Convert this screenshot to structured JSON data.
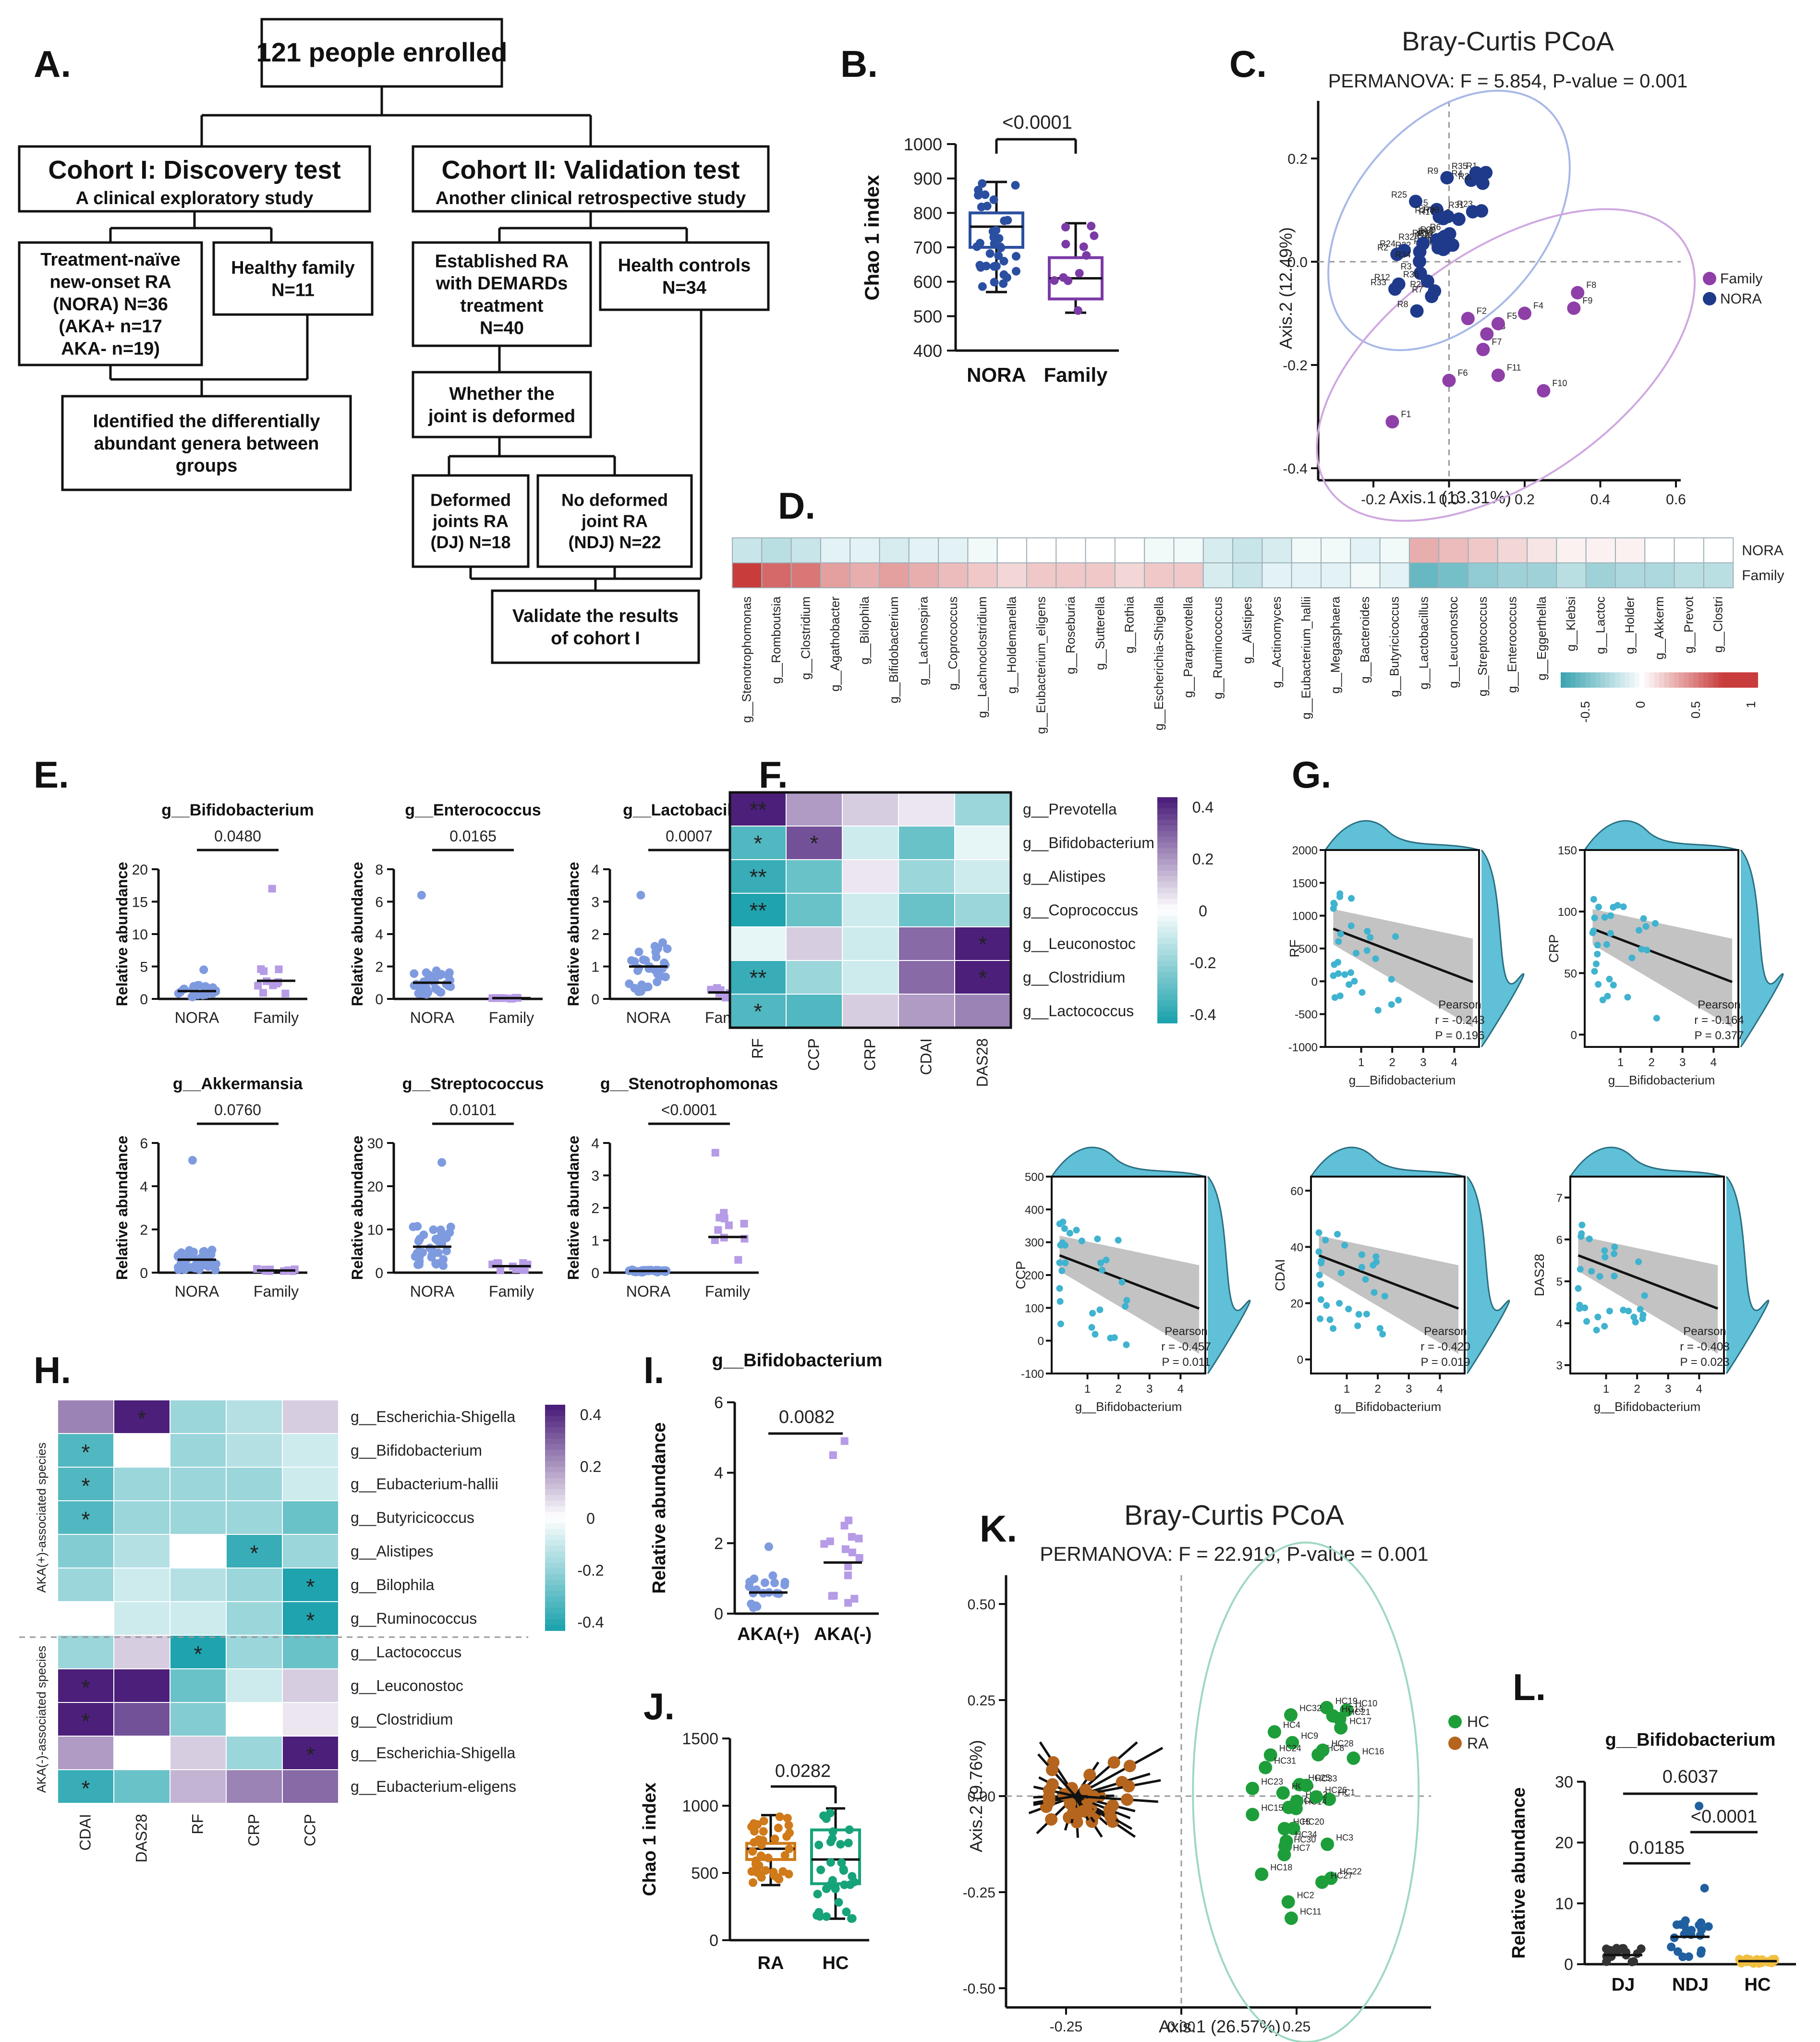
{
  "panel_labels": {
    "a": "A.",
    "b": "B.",
    "c": "C.",
    "d": "D.",
    "e": "E.",
    "f": "F.",
    "g": "G.",
    "h": "H.",
    "i": "I.",
    "j": "J.",
    "k": "K.",
    "l": "L."
  },
  "flowchart": {
    "top": "121 people enrolled",
    "cohort1_title": "Cohort I:  Discovery test",
    "cohort1_sub": "A clinical exploratory study",
    "cohort2_title": "Cohort II:  Validation test",
    "cohort2_sub": "Another clinical retrospective study",
    "nora_lines": [
      "Treatment-naïve",
      "new-onset RA",
      "(NORA)    N=36",
      "(AKA+    n=17",
      "AKA-    n=19)"
    ],
    "family_lines": [
      "Healthy family",
      "N=11"
    ],
    "established_lines": [
      "Established RA",
      "with DEMARDs",
      "treatment",
      "N=40"
    ],
    "health_lines": [
      "Health controls",
      "N=34"
    ],
    "identified_lines": [
      "Identified  the differentially",
      "abundant genera between",
      "groups"
    ],
    "deformed_q_lines": [
      "Whether the",
      "joint is deformed"
    ],
    "dj_lines": [
      "Deformed",
      "joints RA",
      "(DJ) N=18"
    ],
    "ndj_lines": [
      "No deformed",
      "joint RA",
      "(NDJ) N=22"
    ],
    "validate_lines": [
      "Validate  the results",
      "of cohort I"
    ]
  },
  "panel_b": {
    "ylabel": "Chao 1 index",
    "yticks": [
      "400",
      "500",
      "600",
      "700",
      "800",
      "900",
      "1000"
    ],
    "groups": [
      "NORA",
      "Family"
    ],
    "pvalue": "<0.0001",
    "colors": [
      "#2b4fa0",
      "#7b3aa6"
    ]
  },
  "panel_c": {
    "title": "Bray-Curtis PCoA",
    "subtitle": "PERMANOVA: F = 5.854, P-value = 0.001",
    "xlabel": "Axis.1 (13.31%)",
    "ylabel": "Axis.2 (12.49%)",
    "xticks": [
      "-0.2",
      "0.0",
      "0.2",
      "0.4",
      "0.6"
    ],
    "yticks": [
      "0.2",
      "0.0",
      "-0.2",
      "-0.4"
    ],
    "legend": [
      "Family",
      "NORA"
    ],
    "colors": {
      "family": "#8e3fa8",
      "nora": "#1f3a8a"
    }
  },
  "panel_d": {
    "rows": [
      "NORA",
      "Family"
    ],
    "genera": [
      "g__Stenotrophomonas",
      "g__Romboutsia",
      "g__Clostridium",
      "g__Agathobacter",
      "g__Bilophila",
      "g__Bifidobacterium",
      "g__Lachnospira",
      "g__Coprococcus",
      "g__Lachnoclostridium",
      "g__Holdemanella",
      "g__Eubacterium_eligens",
      "g__Roseburia",
      "g__Sutterella",
      "g__Rothia",
      "g__Escherichia-Shigella",
      "g__Paraprevotella",
      "g__Ruminococcus",
      "g__Alistipes",
      "g__Actinomyces",
      "g__Eubacterium_hallii",
      "g__Megasphaera",
      "g__Bacteroides",
      "g__Butyricicoccus",
      "g__Lactobacillus",
      "g__Leuconostoc",
      "g__Streptococcus",
      "g__Enterococcus",
      "g__Eggerthella",
      "g__Klebsi",
      "g__Lactoc",
      "g__Holder",
      "g__Akkerm",
      "g__Prevot",
      "g__Clostri"
    ],
    "nora_values": [
      -0.2,
      -0.25,
      -0.2,
      -0.1,
      -0.1,
      -0.15,
      -0.1,
      -0.1,
      -0.05,
      0,
      0,
      0,
      0,
      0,
      -0.05,
      -0.05,
      -0.15,
      -0.2,
      -0.15,
      -0.05,
      -0.05,
      -0.1,
      -0.05,
      0.3,
      0.25,
      0.2,
      0.15,
      0.1,
      0.05,
      0.05,
      0.05,
      0,
      0,
      0
    ],
    "family_values": [
      0.9,
      0.55,
      0.5,
      0.35,
      0.3,
      0.35,
      0.3,
      0.25,
      0.2,
      0.15,
      0.2,
      0.2,
      0.2,
      0.15,
      0.2,
      0.2,
      -0.15,
      -0.2,
      -0.1,
      -0.1,
      -0.1,
      -0.05,
      -0.1,
      -0.55,
      -0.5,
      -0.4,
      -0.35,
      -0.35,
      -0.25,
      -0.35,
      -0.3,
      -0.3,
      -0.25,
      -0.25
    ],
    "scale_ticks": [
      "-0.5",
      "0",
      "0.5",
      "1"
    ]
  },
  "panel_e": {
    "ylabel": "Relative abundance",
    "groups": [
      "NORA",
      "Family"
    ],
    "plots": [
      {
        "title": "g__Bifidobacterium",
        "pvalue": "0.0480",
        "yticks": [
          "0",
          "5",
          "10",
          "15",
          "20"
        ],
        "ymax": 20
      },
      {
        "title": "g__Enterococcus",
        "pvalue": "0.0165",
        "yticks": [
          "0",
          "2",
          "4",
          "6",
          "8"
        ],
        "ymax": 8
      },
      {
        "title": "g__Lactobacillus",
        "pvalue": "0.0007",
        "yticks": [
          "0",
          "1",
          "2",
          "3",
          "4"
        ],
        "ymax": 4
      },
      {
        "title": "g__Akkermansia",
        "pvalue": "0.0760",
        "yticks": [
          "0",
          "2",
          "4",
          "6"
        ],
        "ymax": 6
      },
      {
        "title": "g__Streptococcus",
        "pvalue": "0.0101",
        "yticks": [
          "0",
          "10",
          "20",
          "30"
        ],
        "ymax": 30
      },
      {
        "title": "g__Stenotrophomonas",
        "pvalue": "<0.0001",
        "yticks": [
          "0",
          "1",
          "2",
          "3",
          "4"
        ],
        "ymax": 4
      }
    ]
  },
  "panel_f": {
    "cols": [
      "RF",
      "CCP",
      "CRP",
      "CDAI",
      "DAS28"
    ],
    "rows": [
      "g__Prevotella",
      "g__Bifidobacterium",
      "g__Alistipes",
      "g__Coprococcus",
      "g__Leuconostoc",
      "g__Clostridium",
      "g__Lactococcus"
    ],
    "values": [
      [
        0.45,
        0.2,
        0.1,
        0.05,
        -0.2
      ],
      [
        -0.35,
        0.35,
        -0.1,
        -0.3,
        -0.05
      ],
      [
        -0.4,
        -0.3,
        0.05,
        -0.2,
        -0.1
      ],
      [
        -0.45,
        -0.3,
        -0.1,
        -0.3,
        -0.2
      ],
      [
        -0.05,
        0.1,
        -0.1,
        0.3,
        0.45
      ],
      [
        -0.4,
        -0.2,
        -0.1,
        0.3,
        0.45
      ],
      [
        -0.35,
        -0.35,
        0.1,
        0.2,
        0.25
      ]
    ],
    "stars": [
      [
        "**",
        "",
        "",
        "",
        ""
      ],
      [
        "*",
        "*",
        "",
        "",
        ""
      ],
      [
        "**",
        "",
        "",
        "",
        ""
      ],
      [
        "**",
        "",
        "",
        "",
        ""
      ],
      [
        "",
        "",
        "",
        "",
        "*"
      ],
      [
        "**",
        "",
        "",
        "",
        "*"
      ],
      [
        "*",
        "",
        "",
        "",
        ""
      ]
    ],
    "scale_ticks": [
      "0.4",
      "0.2",
      "0",
      "-0.2",
      "-0.4"
    ]
  },
  "panel_g": {
    "xlabel": "g__Bifidobacterium",
    "plots": [
      {
        "ylabel": "RF",
        "yticks": [
          "2000",
          "1500",
          "1000",
          "500",
          "0",
          "-500",
          "-1000"
        ],
        "stat": "Pearson",
        "r": "r = -0.243",
        "p": "P = 0.196"
      },
      {
        "ylabel": "CRP",
        "yticks": [
          "150",
          "100",
          "50",
          "0"
        ],
        "stat": "Pearson",
        "r": "r = -0.164",
        "p": "P = 0.377"
      },
      {
        "ylabel": "CCP",
        "yticks": [
          "500",
          "400",
          "300",
          "200",
          "100",
          "0",
          "-100"
        ],
        "stat": "Pearson",
        "r": "r = -0.457",
        "p": "P = 0.011"
      },
      {
        "ylabel": "CDAI",
        "yticks": [
          "60",
          "40",
          "20",
          "0"
        ],
        "stat": "Pearson",
        "r": "r = -0.420",
        "p": "P = 0.019"
      },
      {
        "ylabel": "DAS28",
        "yticks": [
          "7",
          "6",
          "5",
          "4",
          "3"
        ],
        "stat": "Pearson",
        "r": "r = -0.408",
        "p": "P = 0.023"
      }
    ],
    "xticks": [
      "1",
      "2",
      "3",
      "4"
    ]
  },
  "panel_h": {
    "cols": [
      "CDAI",
      "DAS28",
      "RF",
      "CRP",
      "CCP"
    ],
    "rows": [
      "g__Escherichia-Shigella",
      "g__Bifidobacterium",
      "g__Eubacterium-hallii",
      "g__Butyricicoccus",
      "g__Alistipes",
      "g__Bilophila",
      "g__Ruminococcus",
      "g__Lactococcus",
      "g__Leuconostoc",
      "g__Clostridium",
      "g__Escherichia-Shigella",
      "g__Eubacterium-eligens"
    ],
    "values": [
      [
        0.25,
        0.45,
        -0.2,
        -0.15,
        0.1
      ],
      [
        -0.35,
        0,
        -0.2,
        -0.15,
        -0.1
      ],
      [
        -0.35,
        -0.2,
        -0.2,
        -0.2,
        -0.1
      ],
      [
        -0.35,
        -0.2,
        -0.2,
        -0.2,
        -0.3
      ],
      [
        -0.25,
        -0.15,
        0,
        -0.4,
        -0.2
      ],
      [
        -0.2,
        -0.1,
        -0.15,
        -0.2,
        -0.45
      ],
      [
        0,
        -0.1,
        -0.1,
        -0.2,
        -0.45
      ],
      [
        -0.2,
        0.1,
        -0.45,
        -0.2,
        -0.3
      ],
      [
        0.45,
        0.45,
        -0.3,
        -0.1,
        0.1
      ],
      [
        0.45,
        0.35,
        -0.25,
        0,
        0.05
      ],
      [
        0.2,
        0,
        0.1,
        -0.2,
        0.45
      ],
      [
        -0.4,
        -0.3,
        0.15,
        0.25,
        0.3
      ]
    ],
    "stars": [
      [
        "",
        "*",
        "",
        "",
        ""
      ],
      [
        "*",
        "",
        "",
        "",
        ""
      ],
      [
        "*",
        "",
        "",
        "",
        ""
      ],
      [
        "*",
        "",
        "",
        "",
        ""
      ],
      [
        "",
        "",
        "",
        "*",
        ""
      ],
      [
        "",
        "",
        "",
        "",
        "*"
      ],
      [
        "",
        "",
        "",
        "",
        "*"
      ],
      [
        "",
        "",
        "*",
        "",
        ""
      ],
      [
        "*",
        "",
        "",
        "",
        ""
      ],
      [
        "*",
        "",
        "",
        "",
        ""
      ],
      [
        "",
        "",
        "",
        "",
        "*"
      ],
      [
        "*",
        "",
        "",
        "",
        ""
      ]
    ],
    "group_upper": "AKA(+)-associated species",
    "group_lower": "AKA(-)-associated species",
    "scale_ticks": [
      "0.4",
      "0.2",
      "0",
      "-0.2",
      "-0.4"
    ]
  },
  "panel_i": {
    "title": "g__Bifidobacterium",
    "ylabel": "Relative abundance",
    "yticks": [
      "0",
      "2",
      "4",
      "6"
    ],
    "groups": [
      "AKA(+)",
      "AKA(-)"
    ],
    "pvalue": "0.0082"
  },
  "panel_j": {
    "ylabel": "Chao 1 index",
    "yticks": [
      "0",
      "500",
      "1000",
      "1500"
    ],
    "groups": [
      "RA",
      "HC"
    ],
    "pvalue": "0.0282"
  },
  "panel_k": {
    "title": "Bray-Curtis PCoA",
    "subtitle": "PERMANOVA: F = 22.919, P-value = 0.001",
    "xlabel": "Axis.1 (26.57%)",
    "ylabel": "Axis.2 (9.76%)",
    "xticks": [
      "-0.25",
      "0.00",
      "0.25"
    ],
    "yticks": [
      "0.50",
      "0.25",
      "0.00",
      "-0.25",
      "-0.50"
    ],
    "legend": [
      "HC",
      "RA"
    ],
    "colors": {
      "hc": "#1e9e3a",
      "ra": "#b5651d"
    }
  },
  "panel_l": {
    "title": "g__Bifidobacterium",
    "ylabel": "Relative abundance",
    "yticks": [
      "0",
      "10",
      "20",
      "30"
    ],
    "groups": [
      "DJ",
      "NDJ",
      "HC"
    ],
    "p_dj_ndj": "0.0185",
    "p_ndj_hc": "<0.0001",
    "p_dj_hc": "0.6037"
  }
}
